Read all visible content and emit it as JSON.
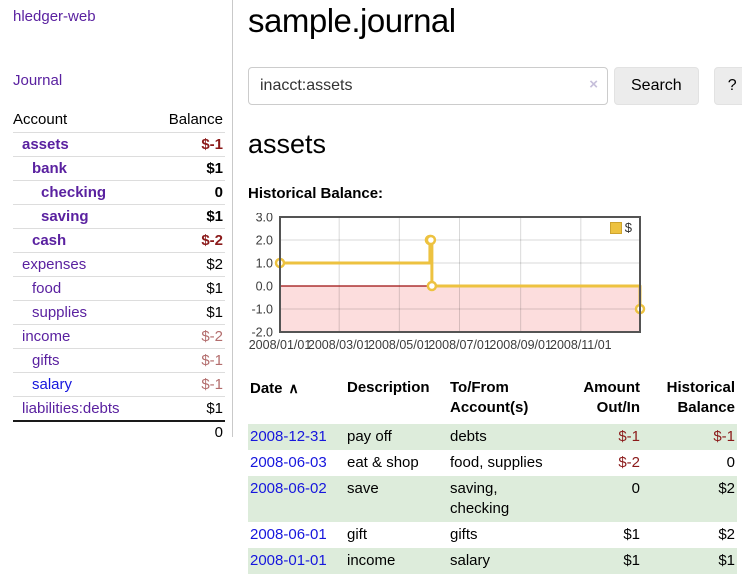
{
  "brand": "hledger-web",
  "nav": {
    "journal": "Journal"
  },
  "sidebar": {
    "columns": {
      "account": "Account",
      "balance": "Balance"
    },
    "accounts": [
      {
        "name": "assets",
        "balance": "$-1",
        "depth": 0
      },
      {
        "name": "bank",
        "balance": "$1",
        "depth": 1
      },
      {
        "name": "checking",
        "balance": "0",
        "depth": 2
      },
      {
        "name": "saving",
        "balance": "$1",
        "depth": 2
      },
      {
        "name": "cash",
        "balance": "$-2",
        "depth": 1
      },
      {
        "name": "expenses",
        "balance": "$2",
        "depth": 0
      },
      {
        "name": "food",
        "balance": "$1",
        "depth": 1
      },
      {
        "name": "supplies",
        "balance": "$1",
        "depth": 1
      },
      {
        "name": "income",
        "balance": "$-2",
        "depth": 0
      },
      {
        "name": "gifts",
        "balance": "$-1",
        "depth": 1
      },
      {
        "name": "salary",
        "balance": "$-1",
        "depth": 1
      },
      {
        "name": "liabilities:debts",
        "balance": "$1",
        "depth": 0
      }
    ],
    "total": "0"
  },
  "main": {
    "title": "sample.journal",
    "search": {
      "value": "inacct:assets",
      "clear_icon": "×",
      "search_button": "Search",
      "help_button": "?"
    },
    "account_heading": "assets",
    "chart_title": "Historical Balance:"
  },
  "chart_data": {
    "type": "line",
    "step": true,
    "title": "Historical Balance",
    "series": [
      {
        "name": "$",
        "points": [
          {
            "x": "2008/01/01",
            "y": 1
          },
          {
            "x": "2008/06/01",
            "y": 2
          },
          {
            "x": "2008/06/02",
            "y": 2
          },
          {
            "x": "2008/06/03",
            "y": 0
          },
          {
            "x": "2008/12/31",
            "y": -1
          }
        ]
      }
    ],
    "x_range": [
      "2008/01/01",
      "2008/12/31"
    ],
    "ylim": [
      -2,
      3
    ],
    "yticks": [
      3,
      2,
      1,
      0,
      -1,
      -2
    ],
    "xticks": [
      "2008/01/01",
      "2008/03/01",
      "2008/05/01",
      "2008/07/01",
      "2008/09/01",
      "2008/11/01"
    ],
    "legend": {
      "label": "$",
      "position": "top-right"
    },
    "colors": {
      "line": "#edc240",
      "marker_fill": "#ffffff",
      "negative_region": "#fcdddd",
      "zero_line": "#9c0d0d",
      "grid": "rgba(0,0,0,0.15)",
      "border": "#545454"
    }
  },
  "register": {
    "columns": [
      "Date",
      "Description",
      "To/From Account(s)",
      "Amount Out/In",
      "Historical Balance"
    ],
    "sort_icon": "∧",
    "rows": [
      {
        "date": "2008-12-31",
        "description": "pay off",
        "accounts": "debts",
        "amount": "$-1",
        "balance": "$-1"
      },
      {
        "date": "2008-06-03",
        "description": "eat & shop",
        "accounts": "food, supplies",
        "amount": "$-2",
        "balance": "0"
      },
      {
        "date": "2008-06-02",
        "description": "save",
        "accounts": "saving,\nchecking",
        "amount": "0",
        "balance": "$2"
      },
      {
        "date": "2008-06-01",
        "description": "gift",
        "accounts": "gifts",
        "amount": "$1",
        "balance": "$2"
      },
      {
        "date": "2008-01-01",
        "description": "income",
        "accounts": "salary",
        "amount": "$1",
        "balance": "$1"
      }
    ]
  }
}
